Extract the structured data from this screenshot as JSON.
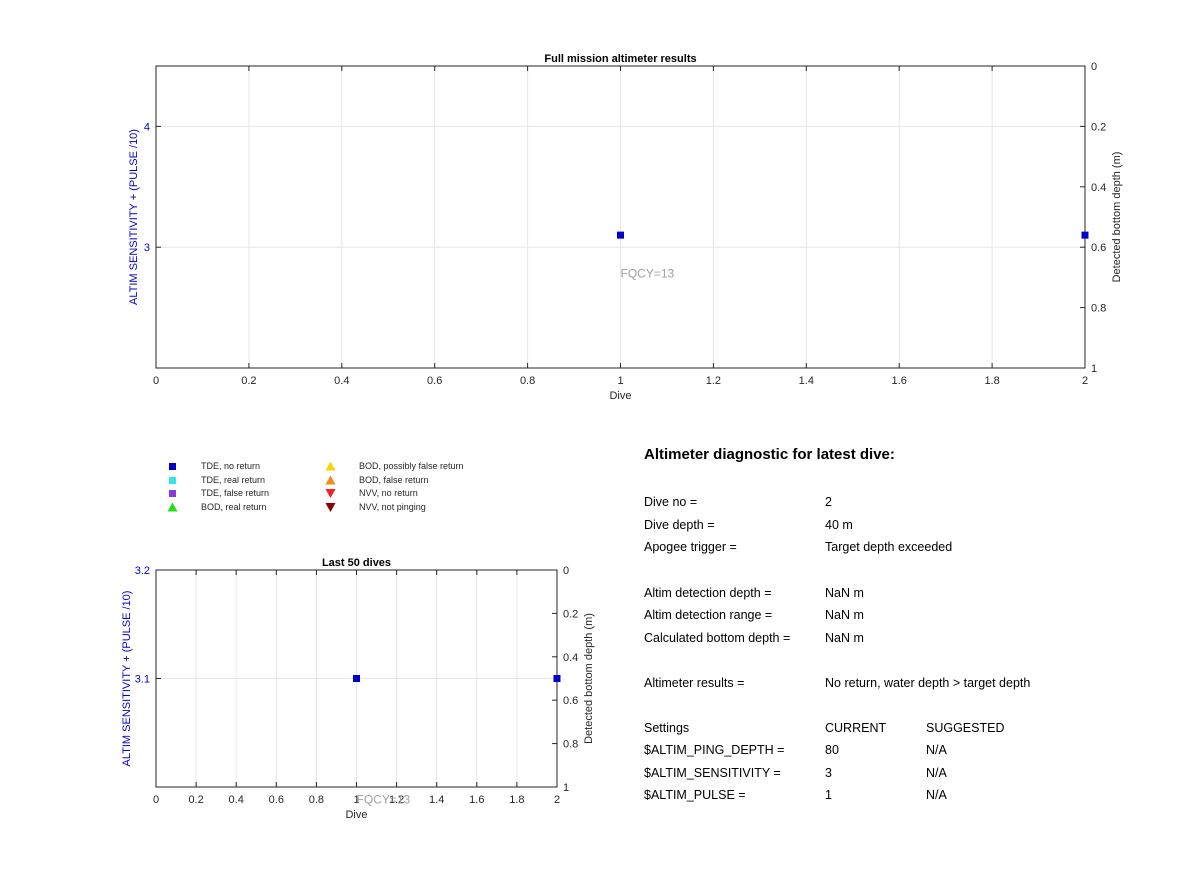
{
  "chart_data": [
    {
      "type": "scatter",
      "title": "Full mission altimeter results",
      "xlabel": "Dive",
      "ylabel_left": "ALTIM SENSITIVITY + (PULSE /10)",
      "ylabel_right": "Detected bottom depth (m)",
      "xlim": [
        0,
        2
      ],
      "ylim_left": [
        2,
        4.5
      ],
      "ylim_right": [
        0,
        1
      ],
      "right_axis_reversed": true,
      "xticks": [
        "0",
        "0.2",
        "0.4",
        "0.6",
        "0.8",
        "1",
        "1.2",
        "1.4",
        "1.6",
        "1.8",
        "2"
      ],
      "yticks_left": [
        "3",
        "4"
      ],
      "yticks_right": [
        "0",
        "0.2",
        "0.4",
        "0.6",
        "0.8",
        "1"
      ],
      "grid": true,
      "series": [
        {
          "name": "TDE, no return",
          "color": "#0000cc",
          "marker": "square",
          "x": [
            1,
            2
          ],
          "y": [
            3.1,
            3.1
          ]
        }
      ],
      "annotations": [
        {
          "text": "FQCY=13",
          "x": 1,
          "y": 2.9
        }
      ]
    },
    {
      "type": "scatter",
      "title": "Last 50 dives",
      "xlabel": "Dive",
      "ylabel_left": "ALTIM SENSITIVITY + (PULSE /10)",
      "ylabel_right": "Detected bottom depth (m)",
      "xlim": [
        0,
        2
      ],
      "ylim_left": [
        3,
        3.2
      ],
      "ylim_right": [
        0,
        1
      ],
      "right_axis_reversed": true,
      "xticks": [
        "0",
        "0.2",
        "0.4",
        "0.6",
        "0.8",
        "1",
        "1.2",
        "1.4",
        "1.6",
        "1.8",
        "2"
      ],
      "yticks_left": [
        "3.1",
        "3.2"
      ],
      "yticks_right": [
        "0",
        "0.2",
        "0.4",
        "0.6",
        "0.8",
        "1"
      ],
      "grid": true,
      "series": [
        {
          "name": "TDE, no return",
          "color": "#0000cc",
          "marker": "square",
          "x": [
            1,
            2
          ],
          "y": [
            3.1,
            3.1
          ]
        }
      ],
      "annotations": [
        {
          "text": "FQCY=13",
          "x": 1,
          "y": 2.985
        }
      ]
    }
  ],
  "legend": [
    {
      "label": "TDE, no return",
      "marker": "square",
      "color": "#0000cc"
    },
    {
      "label": "TDE, real return",
      "marker": "square",
      "color": "#33e6e6"
    },
    {
      "label": "TDE, false return",
      "marker": "square",
      "color": "#8a3dd6"
    },
    {
      "label": "BOD, real return",
      "marker": "triangle-up",
      "color": "#22dd22"
    },
    {
      "label": "BOD, possibly false return",
      "marker": "triangle-up",
      "color": "#f2d600"
    },
    {
      "label": "BOD, false return",
      "marker": "triangle-up",
      "color": "#f08a1a"
    },
    {
      "label": "NVV, no return",
      "marker": "triangle-down",
      "color": "#ee2222"
    },
    {
      "label": "NVV, not pinging",
      "marker": "triangle-down",
      "color": "#8b0000"
    }
  ],
  "diagnostic": {
    "title": "Altimeter diagnostic for latest dive:",
    "rows": [
      {
        "label": "Dive no =",
        "value": "2"
      },
      {
        "label": "Dive depth =",
        "value": "40 m"
      },
      {
        "label": "Apogee trigger =",
        "value": "Target depth exceeded"
      },
      {
        "label": "Altim detection depth =",
        "value": "NaN m"
      },
      {
        "label": "Altim detection range =",
        "value": "NaN m"
      },
      {
        "label": "Calculated bottom depth =",
        "value": "NaN m"
      },
      {
        "label": "Altimeter results =",
        "value": "No return, water depth > target depth"
      }
    ],
    "settings_header": {
      "label": "Settings",
      "current": "CURRENT",
      "suggested": "SUGGESTED"
    },
    "settings": [
      {
        "label": "$ALTIM_PING_DEPTH =",
        "current": "80",
        "suggested": "N/A"
      },
      {
        "label": "$ALTIM_SENSITIVITY =",
        "current": "3",
        "suggested": "N/A"
      },
      {
        "label": "$ALTIM_PULSE =",
        "current": "1",
        "suggested": "N/A"
      }
    ]
  }
}
